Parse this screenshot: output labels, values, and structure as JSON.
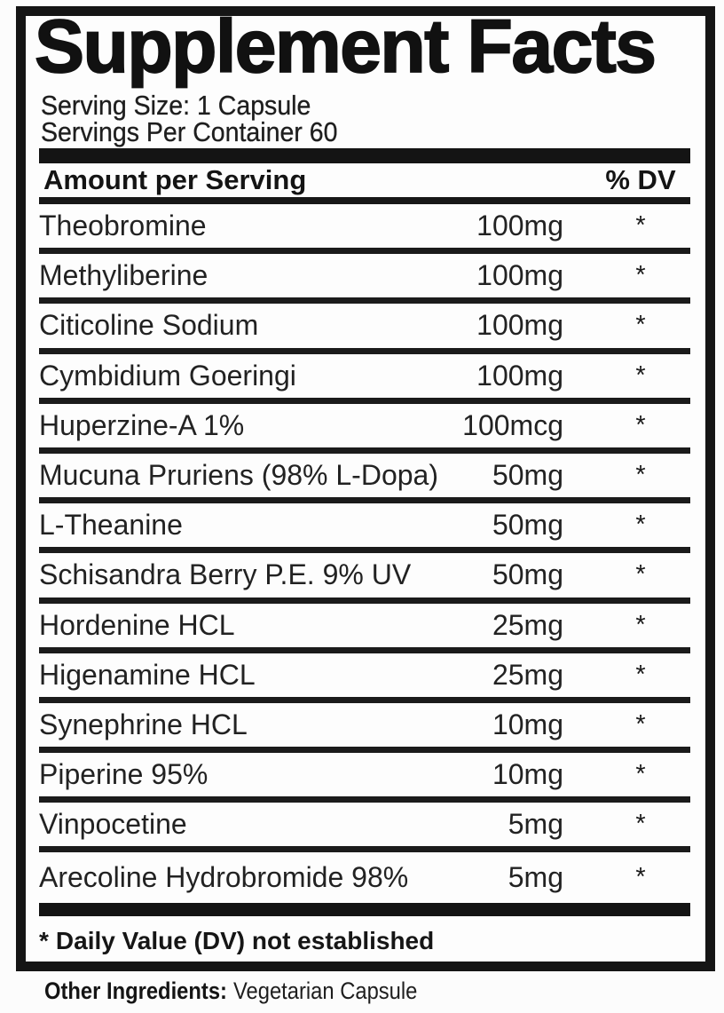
{
  "label": {
    "title": "Supplement Facts",
    "serving_size": "Serving Size: 1 Capsule",
    "servings_per_container": "Servings Per Container 60",
    "header": {
      "amount": "Amount per Serving",
      "dv": "% DV"
    },
    "rows": [
      {
        "name": "Theobromine",
        "amount": "100mg",
        "dv": "*"
      },
      {
        "name": "Methyliberine",
        "amount": "100mg",
        "dv": "*"
      },
      {
        "name": "Citicoline Sodium",
        "amount": "100mg",
        "dv": "*"
      },
      {
        "name": "Cymbidium Goeringi",
        "amount": "100mg",
        "dv": "*"
      },
      {
        "name": "Huperzine-A 1%",
        "amount": "100mcg",
        "dv": "*"
      },
      {
        "name": "Mucuna Pruriens (98% L-Dopa)",
        "amount": "50mg",
        "dv": "*"
      },
      {
        "name": "L-Theanine",
        "amount": "50mg",
        "dv": "*"
      },
      {
        "name": "Schisandra Berry P.E. 9% UV",
        "amount": "50mg",
        "dv": "*"
      },
      {
        "name": "Hordenine HCL",
        "amount": "25mg",
        "dv": "*"
      },
      {
        "name": "Higenamine HCL",
        "amount": "25mg",
        "dv": "*"
      },
      {
        "name": "Synephrine HCL",
        "amount": "10mg",
        "dv": "*"
      },
      {
        "name": "Piperine 95%",
        "amount": "10mg",
        "dv": "*"
      },
      {
        "name": "Vinpocetine",
        "amount": "5mg",
        "dv": "*"
      },
      {
        "name": "Arecoline Hydrobromide 98%",
        "amount": "5mg",
        "dv": "*"
      }
    ],
    "footnote": {
      "marker": "*",
      "text": "Daily Value (DV) not established"
    },
    "other_ingredients": {
      "label": "Other Ingredients:",
      "value": "Vegetarian Capsule"
    },
    "colors": {
      "text": "#1c1c1c",
      "rule": "#151515",
      "background": "#fcfcfc"
    }
  }
}
